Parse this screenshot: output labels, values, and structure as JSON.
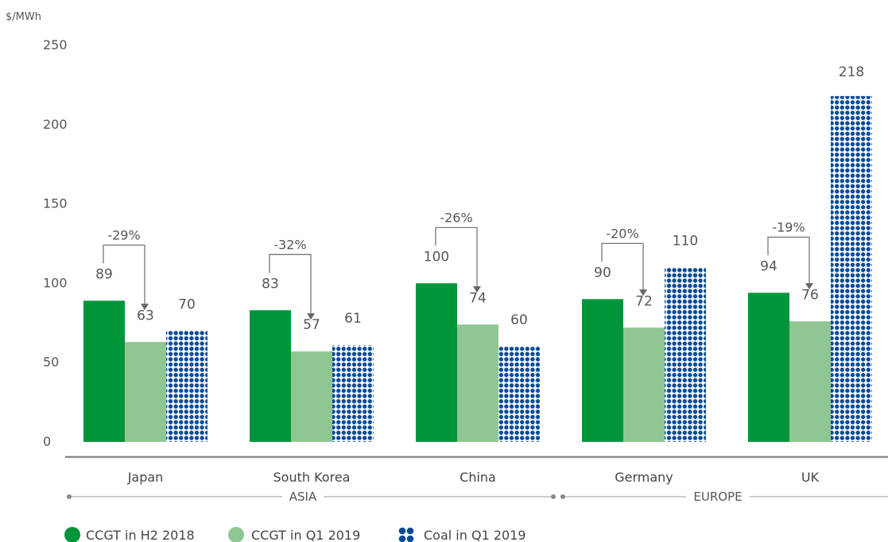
{
  "colors": {
    "ccgt_h2_2018": "#00953a",
    "ccgt_q1_2019": "#8fc694",
    "coal_q1_2019": "#0a4a97"
  },
  "chart_data": {
    "type": "bar",
    "ylabel": "$/MWh",
    "ylim": [
      0,
      250
    ],
    "yticks": [
      0,
      50,
      100,
      150,
      200,
      250
    ],
    "grid": false,
    "legend_position": "bottom-left",
    "categories": [
      "Japan",
      "South Korea",
      "China",
      "Germany",
      "UK"
    ],
    "series": [
      {
        "name": "CCGT in H2 2018",
        "values": [
          89,
          83,
          100,
          90,
          94
        ],
        "labels": [
          "89",
          "83",
          "100",
          "90",
          "94"
        ]
      },
      {
        "name": "CCGT in Q1 2019",
        "values": [
          63,
          57,
          74,
          72,
          76
        ],
        "labels": [
          "63",
          "57",
          "74",
          "72",
          "76"
        ]
      },
      {
        "name": "Coal in Q1 2019",
        "values": [
          70,
          61,
          60,
          110,
          218
        ],
        "labels": [
          "70",
          "61",
          "60",
          "110",
          "218"
        ]
      }
    ],
    "annotations": [
      "-29%",
      "-32%",
      "-26%",
      "-20%",
      "-19%"
    ],
    "groups": [
      {
        "label": "ASIA",
        "categories": [
          "Japan",
          "South Korea",
          "China"
        ]
      },
      {
        "label": "EUROPE",
        "categories": [
          "Germany",
          "UK"
        ]
      }
    ]
  }
}
